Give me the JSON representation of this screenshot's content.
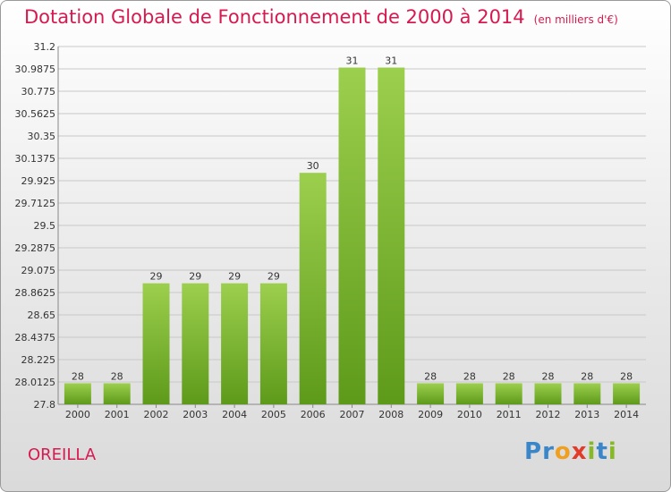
{
  "header": {
    "title": "Dotation Globale de Fonctionnement de 2000 à 2014",
    "subtitle": "(en milliers d'€)"
  },
  "footer": {
    "commune": "OREILLA",
    "logo_letters": [
      "P",
      "r",
      "o",
      "x",
      "i",
      "t",
      "i"
    ]
  },
  "colors": {
    "title": "#d61a4f",
    "bar_top": "#9ccf4d",
    "bar_bottom": "#5e9a1a",
    "grid": "#c8c8c8"
  },
  "chart_data": {
    "type": "bar",
    "title": "Dotation Globale de Fonctionnement de 2000 à 2014",
    "xlabel": "",
    "ylabel": "",
    "categories": [
      "2000",
      "2001",
      "2002",
      "2003",
      "2004",
      "2005",
      "2006",
      "2007",
      "2008",
      "2009",
      "2010",
      "2011",
      "2012",
      "2013",
      "2014"
    ],
    "values": [
      28,
      28,
      29,
      29,
      29,
      29,
      30,
      31,
      31,
      28,
      28,
      28,
      28,
      28,
      28
    ],
    "value_labels": [
      "28",
      "28",
      "29",
      "29",
      "29",
      "29",
      "30",
      "31",
      "31",
      "28",
      "28",
      "28",
      "28",
      "28",
      "28"
    ],
    "bar_heights": [
      28.0,
      28.0,
      28.95,
      28.95,
      28.95,
      28.95,
      30.0,
      31.0,
      31.0,
      28.0,
      28.0,
      28.0,
      28.0,
      28.0,
      28.0
    ],
    "ylim": [
      27.8,
      31.2
    ],
    "yticks": [
      "27.8",
      "28.0125",
      "28.225",
      "28.4375",
      "28.65",
      "28.8625",
      "29.075",
      "29.2875",
      "29.5",
      "29.7125",
      "29.925",
      "30.1375",
      "30.35",
      "30.5625",
      "30.775",
      "30.9875",
      "31.2"
    ],
    "grid": true,
    "legend": "none"
  }
}
